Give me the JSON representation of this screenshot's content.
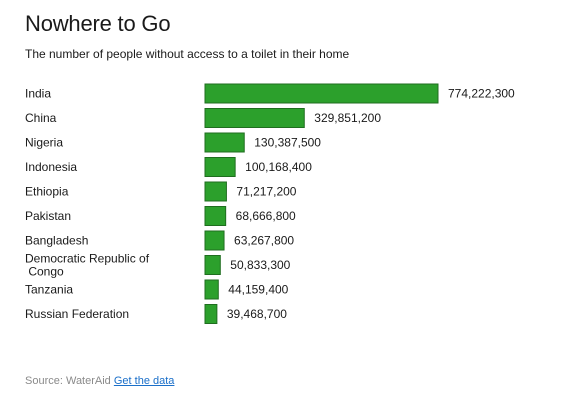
{
  "chart_data": {
    "type": "bar",
    "orientation": "horizontal",
    "title": "Nowhere to Go",
    "subtitle": "The number of people without access to a toilet in their home",
    "categories": [
      [
        "India"
      ],
      [
        "China"
      ],
      [
        "Nigeria"
      ],
      [
        "Indonesia"
      ],
      [
        "Ethiopia"
      ],
      [
        "Pakistan"
      ],
      [
        "Bangladesh"
      ],
      [
        "Democratic Republic of",
        " Congo"
      ],
      [
        "Tanzania"
      ],
      [
        "Russian Federation"
      ]
    ],
    "values": [
      774222300,
      329851200,
      130387500,
      100168400,
      71217200,
      68666800,
      63267800,
      50833300,
      44159400,
      39468700
    ],
    "value_labels": [
      "774,222,300",
      "329,851,200",
      "130,387,500",
      "100,168,400",
      "71,217,200",
      "68,666,800",
      "63,267,800",
      "50,833,300",
      "44,159,400",
      "39,468,700"
    ],
    "bar_color": "#2ca02c",
    "grid": false,
    "legend": "none"
  },
  "source": {
    "label": "Source: WaterAid",
    "link_text": "Get the data",
    "link_color": "#1a6fc9"
  }
}
